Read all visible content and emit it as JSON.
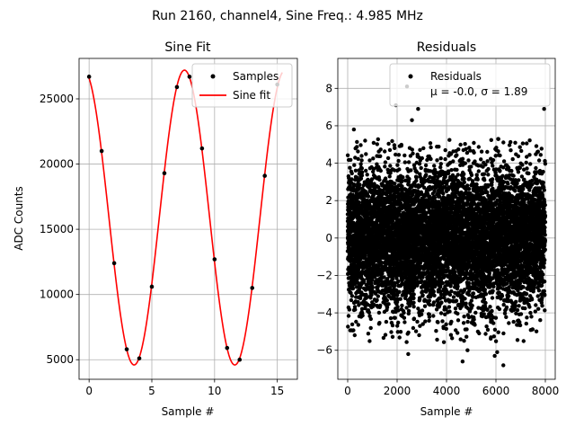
{
  "figure_title": "Run 2160, channel4, Sine Freq.: 4.985 MHz",
  "chart_data": [
    {
      "type": "line",
      "title": "Sine Fit",
      "xlabel": "Sample #",
      "ylabel": "ADC Counts",
      "xlim": [
        -0.8,
        16.6
      ],
      "ylim": [
        3500,
        28100
      ],
      "grid": true,
      "legend_position": "top-right",
      "x_ticks": [
        0,
        5,
        10,
        15
      ],
      "x_tick_labels": [
        "0",
        "5",
        "10",
        "15"
      ],
      "y_ticks": [
        5000,
        10000,
        15000,
        20000,
        25000
      ],
      "y_tick_labels": [
        "5000",
        "10000",
        "15000",
        "20000",
        "25000"
      ],
      "series": [
        {
          "name": "Samples",
          "kind": "scatter",
          "color": "#000000",
          "x": [
            0,
            1,
            2,
            3,
            4,
            5,
            6,
            7,
            8,
            9,
            10,
            11,
            12,
            13,
            14,
            15
          ],
          "y": [
            26700,
            21000,
            12400,
            5800,
            5100,
            10600,
            19300,
            25900,
            26700,
            21200,
            12700,
            5900,
            5000,
            10500,
            19100,
            26100
          ]
        },
        {
          "name": "Sine fit",
          "kind": "line",
          "color": "#ff0000",
          "model": {
            "amplitude": 11300,
            "offset": 15900,
            "period": 8.025,
            "phase_sample": 7.6
          },
          "x_range": [
            0,
            15.4
          ]
        }
      ]
    },
    {
      "type": "scatter",
      "title": "Residuals",
      "xlabel": "Sample #",
      "ylabel": "",
      "xlim": [
        -400,
        8400
      ],
      "ylim": [
        -7.55,
        9.6
      ],
      "grid": true,
      "legend_position": "top-right",
      "x_ticks": [
        0,
        2000,
        4000,
        6000,
        8000
      ],
      "x_tick_labels": [
        "0",
        "2000",
        "4000",
        "6000",
        "8000"
      ],
      "y_ticks": [
        -6,
        -4,
        -2,
        0,
        2,
        4,
        6,
        8
      ],
      "y_tick_labels": [
        "−6",
        "−4",
        "−2",
        "0",
        "2",
        "4",
        "6",
        "8"
      ],
      "series": [
        {
          "name": "Residuals",
          "color": "#000000",
          "count": 8000,
          "mean": 0.0,
          "std": 1.89,
          "x_range": [
            0,
            8000
          ],
          "outliers": [
            {
              "x": 2400,
              "y": 8.1
            },
            {
              "x": 7950,
              "y": 6.9
            },
            {
              "x": 2600,
              "y": 6.3
            },
            {
              "x": 2850,
              "y": 6.9
            },
            {
              "x": 1950,
              "y": 7.1
            },
            {
              "x": 4650,
              "y": -6.6
            },
            {
              "x": 6300,
              "y": -6.8
            },
            {
              "x": 5950,
              "y": -6.3
            },
            {
              "x": 2450,
              "y": -6.2
            },
            {
              "x": 250,
              "y": 5.8
            },
            {
              "x": 4850,
              "y": -6.0
            },
            {
              "x": 6050,
              "y": -6.1
            }
          ]
        }
      ],
      "legend": {
        "label": "Residuals",
        "stats": "μ = -0.0, σ = 1.89"
      }
    }
  ]
}
